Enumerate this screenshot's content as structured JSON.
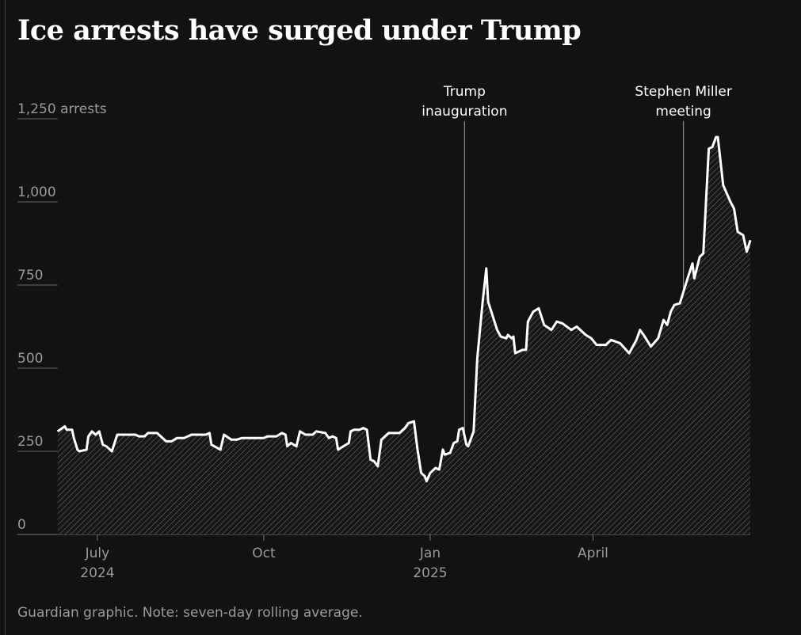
{
  "title": "Ice arrests have surged under Trump",
  "footer": "Guardian graphic. Note: seven-day rolling average.",
  "colors": {
    "background": "#121212",
    "line": "#ffffff",
    "axis_text": "#9a9a9a",
    "hatch": "#777777"
  },
  "chart_data": {
    "type": "area",
    "title": "Ice arrests have surged under Trump",
    "ylabel_unit": "arrests",
    "ylim": [
      0,
      1250
    ],
    "yticks": [
      {
        "value": 0,
        "label": "0"
      },
      {
        "value": 250,
        "label": "250"
      },
      {
        "value": 500,
        "label": "500"
      },
      {
        "value": 750,
        "label": "750"
      },
      {
        "value": 1000,
        "label": "1,000"
      },
      {
        "value": 1250,
        "label": "1,250"
      }
    ],
    "xlim": [
      "2024-06-09",
      "2025-06-27"
    ],
    "xticks": [
      {
        "date": "2024-07-01",
        "label": "July",
        "sublabel": "2024"
      },
      {
        "date": "2024-10-01",
        "label": "Oct",
        "sublabel": ""
      },
      {
        "date": "2025-01-01",
        "label": "Jan",
        "sublabel": "2025"
      },
      {
        "date": "2025-04-01",
        "label": "April",
        "sublabel": ""
      }
    ],
    "grid": false,
    "annotations": [
      {
        "date": "2025-01-20",
        "lines": [
          "Trump",
          "inauguration"
        ]
      },
      {
        "date": "2025-05-21",
        "lines": [
          "Stephen Miller",
          "meeting"
        ]
      }
    ],
    "series": [
      {
        "points": [
          [
            "2024-06-09",
            310
          ],
          [
            "2024-06-13",
            325
          ],
          [
            "2024-06-14",
            315
          ],
          [
            "2024-06-17",
            315
          ],
          [
            "2024-06-18",
            290
          ],
          [
            "2024-06-20",
            255
          ],
          [
            "2024-06-21",
            250
          ],
          [
            "2024-06-25",
            255
          ],
          [
            "2024-06-26",
            295
          ],
          [
            "2024-06-28",
            310
          ],
          [
            "2024-06-30",
            300
          ],
          [
            "2024-07-02",
            310
          ],
          [
            "2024-07-04",
            270
          ],
          [
            "2024-07-06",
            265
          ],
          [
            "2024-07-09",
            250
          ],
          [
            "2024-07-12",
            300
          ],
          [
            "2024-07-22",
            300
          ],
          [
            "2024-07-24",
            295
          ],
          [
            "2024-07-27",
            295
          ],
          [
            "2024-07-29",
            305
          ],
          [
            "2024-08-03",
            305
          ],
          [
            "2024-08-08",
            280
          ],
          [
            "2024-08-11",
            280
          ],
          [
            "2024-08-14",
            290
          ],
          [
            "2024-08-18",
            290
          ],
          [
            "2024-08-22",
            300
          ],
          [
            "2024-08-30",
            300
          ],
          [
            "2024-09-01",
            305
          ],
          [
            "2024-09-02",
            270
          ],
          [
            "2024-09-07",
            255
          ],
          [
            "2024-09-09",
            300
          ],
          [
            "2024-09-13",
            285
          ],
          [
            "2024-09-16",
            285
          ],
          [
            "2024-09-19",
            290
          ],
          [
            "2024-09-25",
            290
          ],
          [
            "2024-10-01",
            290
          ],
          [
            "2024-10-03",
            295
          ],
          [
            "2024-10-08",
            295
          ],
          [
            "2024-10-11",
            305
          ],
          [
            "2024-10-13",
            300
          ],
          [
            "2024-10-14",
            265
          ],
          [
            "2024-10-16",
            275
          ],
          [
            "2024-10-19",
            265
          ],
          [
            "2024-10-21",
            310
          ],
          [
            "2024-10-24",
            300
          ],
          [
            "2024-10-28",
            300
          ],
          [
            "2024-10-30",
            310
          ],
          [
            "2024-11-04",
            305
          ],
          [
            "2024-11-06",
            290
          ],
          [
            "2024-11-08",
            295
          ],
          [
            "2024-11-10",
            290
          ],
          [
            "2024-11-11",
            255
          ],
          [
            "2024-11-14",
            265
          ],
          [
            "2024-11-17",
            275
          ],
          [
            "2024-11-18",
            310
          ],
          [
            "2024-11-20",
            315
          ],
          [
            "2024-11-23",
            315
          ],
          [
            "2024-11-25",
            320
          ],
          [
            "2024-11-27",
            315
          ],
          [
            "2024-11-29",
            225
          ],
          [
            "2024-12-01",
            220
          ],
          [
            "2024-12-03",
            205
          ],
          [
            "2024-12-05",
            285
          ],
          [
            "2024-12-09",
            305
          ],
          [
            "2024-12-12",
            305
          ],
          [
            "2024-12-15",
            305
          ],
          [
            "2024-12-18",
            320
          ],
          [
            "2024-12-20",
            335
          ],
          [
            "2024-12-23",
            340
          ],
          [
            "2024-12-25",
            255
          ],
          [
            "2024-12-27",
            185
          ],
          [
            "2024-12-29",
            175
          ],
          [
            "2024-12-30",
            160
          ],
          [
            "2025-01-01",
            185
          ],
          [
            "2025-01-04",
            200
          ],
          [
            "2025-01-06",
            195
          ],
          [
            "2025-01-08",
            255
          ],
          [
            "2025-01-09",
            240
          ],
          [
            "2025-01-12",
            245
          ],
          [
            "2025-01-14",
            275
          ],
          [
            "2025-01-16",
            280
          ],
          [
            "2025-01-17",
            315
          ],
          [
            "2025-01-19",
            320
          ],
          [
            "2025-01-21",
            270
          ],
          [
            "2025-01-22",
            265
          ],
          [
            "2025-01-25",
            310
          ],
          [
            "2025-01-27",
            530
          ],
          [
            "2025-01-30",
            700
          ],
          [
            "2025-02-01",
            800
          ],
          [
            "2025-02-02",
            700
          ],
          [
            "2025-02-07",
            615
          ],
          [
            "2025-02-09",
            595
          ],
          [
            "2025-02-12",
            590
          ],
          [
            "2025-02-13",
            600
          ],
          [
            "2025-02-15",
            590
          ],
          [
            "2025-02-16",
            595
          ],
          [
            "2025-02-17",
            545
          ],
          [
            "2025-02-19",
            550
          ],
          [
            "2025-02-21",
            555
          ],
          [
            "2025-02-23",
            555
          ],
          [
            "2025-02-24",
            640
          ],
          [
            "2025-02-27",
            670
          ],
          [
            "2025-03-02",
            680
          ],
          [
            "2025-03-05",
            630
          ],
          [
            "2025-03-09",
            615
          ],
          [
            "2025-03-12",
            640
          ],
          [
            "2025-03-15",
            635
          ],
          [
            "2025-03-20",
            615
          ],
          [
            "2025-03-23",
            625
          ],
          [
            "2025-03-28",
            600
          ],
          [
            "2025-03-31",
            590
          ],
          [
            "2025-04-03",
            570
          ],
          [
            "2025-04-08",
            570
          ],
          [
            "2025-04-11",
            585
          ],
          [
            "2025-04-16",
            575
          ],
          [
            "2025-04-21",
            545
          ],
          [
            "2025-04-25",
            585
          ],
          [
            "2025-04-27",
            615
          ],
          [
            "2025-04-29",
            600
          ],
          [
            "2025-05-03",
            565
          ],
          [
            "2025-05-07",
            590
          ],
          [
            "2025-05-10",
            645
          ],
          [
            "2025-05-12",
            630
          ],
          [
            "2025-05-14",
            670
          ],
          [
            "2025-05-16",
            690
          ],
          [
            "2025-05-19",
            695
          ],
          [
            "2025-05-23",
            765
          ],
          [
            "2025-05-26",
            815
          ],
          [
            "2025-05-27",
            770
          ],
          [
            "2025-05-30",
            835
          ],
          [
            "2025-06-01",
            845
          ],
          [
            "2025-06-04",
            1160
          ],
          [
            "2025-06-06",
            1165
          ],
          [
            "2025-06-08",
            1195
          ],
          [
            "2025-06-09",
            1195
          ],
          [
            "2025-06-12",
            1050
          ],
          [
            "2025-06-16",
            1000
          ],
          [
            "2025-06-18",
            980
          ],
          [
            "2025-06-20",
            910
          ],
          [
            "2025-06-23",
            900
          ],
          [
            "2025-06-25",
            850
          ],
          [
            "2025-06-27",
            885
          ]
        ]
      }
    ]
  }
}
